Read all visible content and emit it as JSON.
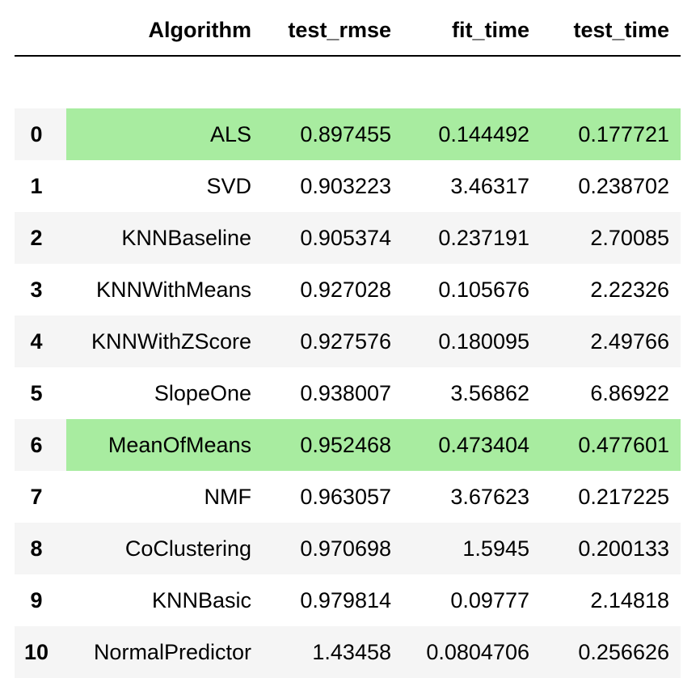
{
  "table": {
    "columns": {
      "index": "",
      "algorithm": "Algorithm",
      "test_rmse": "test_rmse",
      "fit_time": "fit_time",
      "test_time": "test_time"
    },
    "highlight_color": "#a8eca0",
    "highlighted_rows": [
      0,
      6
    ],
    "rows": [
      {
        "index": "0",
        "algorithm": "ALS",
        "test_rmse": "0.897455",
        "fit_time": "0.144492",
        "test_time": "0.177721"
      },
      {
        "index": "1",
        "algorithm": "SVD",
        "test_rmse": "0.903223",
        "fit_time": "3.46317",
        "test_time": "0.238702"
      },
      {
        "index": "2",
        "algorithm": "KNNBaseline",
        "test_rmse": "0.905374",
        "fit_time": "0.237191",
        "test_time": "2.70085"
      },
      {
        "index": "3",
        "algorithm": "KNNWithMeans",
        "test_rmse": "0.927028",
        "fit_time": "0.105676",
        "test_time": "2.22326"
      },
      {
        "index": "4",
        "algorithm": "KNNWithZScore",
        "test_rmse": "0.927576",
        "fit_time": "0.180095",
        "test_time": "2.49766"
      },
      {
        "index": "5",
        "algorithm": "SlopeOne",
        "test_rmse": "0.938007",
        "fit_time": "3.56862",
        "test_time": "6.86922"
      },
      {
        "index": "6",
        "algorithm": "MeanOfMeans",
        "test_rmse": "0.952468",
        "fit_time": "0.473404",
        "test_time": "0.477601"
      },
      {
        "index": "7",
        "algorithm": "NMF",
        "test_rmse": "0.963057",
        "fit_time": "3.67623",
        "test_time": "0.217225"
      },
      {
        "index": "8",
        "algorithm": "CoClustering",
        "test_rmse": "0.970698",
        "fit_time": "1.5945",
        "test_time": "0.200133"
      },
      {
        "index": "9",
        "algorithm": "KNNBasic",
        "test_rmse": "0.979814",
        "fit_time": "0.09777",
        "test_time": "2.14818"
      },
      {
        "index": "10",
        "algorithm": "NormalPredictor",
        "test_rmse": "1.43458",
        "fit_time": "0.0804706",
        "test_time": "0.256626"
      }
    ]
  }
}
